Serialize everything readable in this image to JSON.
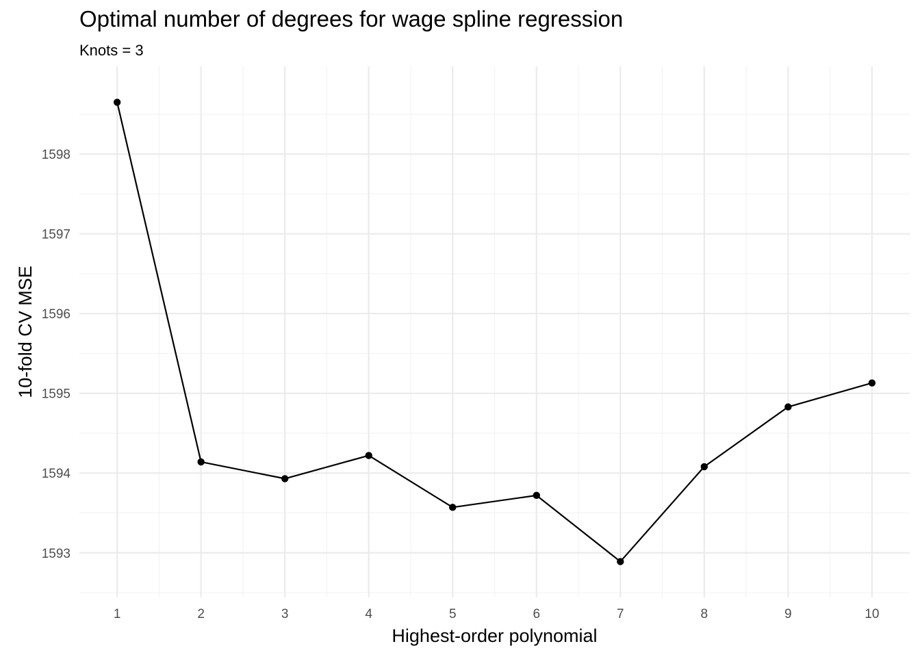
{
  "chart_data": {
    "type": "line",
    "title": "Optimal number of degrees for wage spline regression",
    "subtitle": "Knots = 3",
    "xlabel": "Highest-order polynomial",
    "ylabel": "10-fold CV MSE",
    "x": [
      1,
      2,
      3,
      4,
      5,
      6,
      7,
      8,
      9,
      10
    ],
    "series": [
      {
        "values": [
          1598.65,
          1594.14,
          1593.93,
          1594.22,
          1593.57,
          1593.72,
          1592.89,
          1594.08,
          1594.83,
          1595.13
        ]
      }
    ],
    "xticks": [
      "1",
      "2",
      "3",
      "4",
      "5",
      "6",
      "7",
      "8",
      "9",
      "10"
    ],
    "yticks": [
      "1593",
      "1594",
      "1595",
      "1596",
      "1597",
      "1598"
    ],
    "xlim": [
      0.55,
      10.45
    ],
    "ylim": [
      1592.44,
      1599.1
    ],
    "grid": true,
    "legend": "none",
    "colors": {
      "line": "#000000",
      "point": "#000000",
      "grid_major": "#ebebeb",
      "grid_minor": "#f2f2f2",
      "tick_text": "#4d4d4d"
    }
  }
}
